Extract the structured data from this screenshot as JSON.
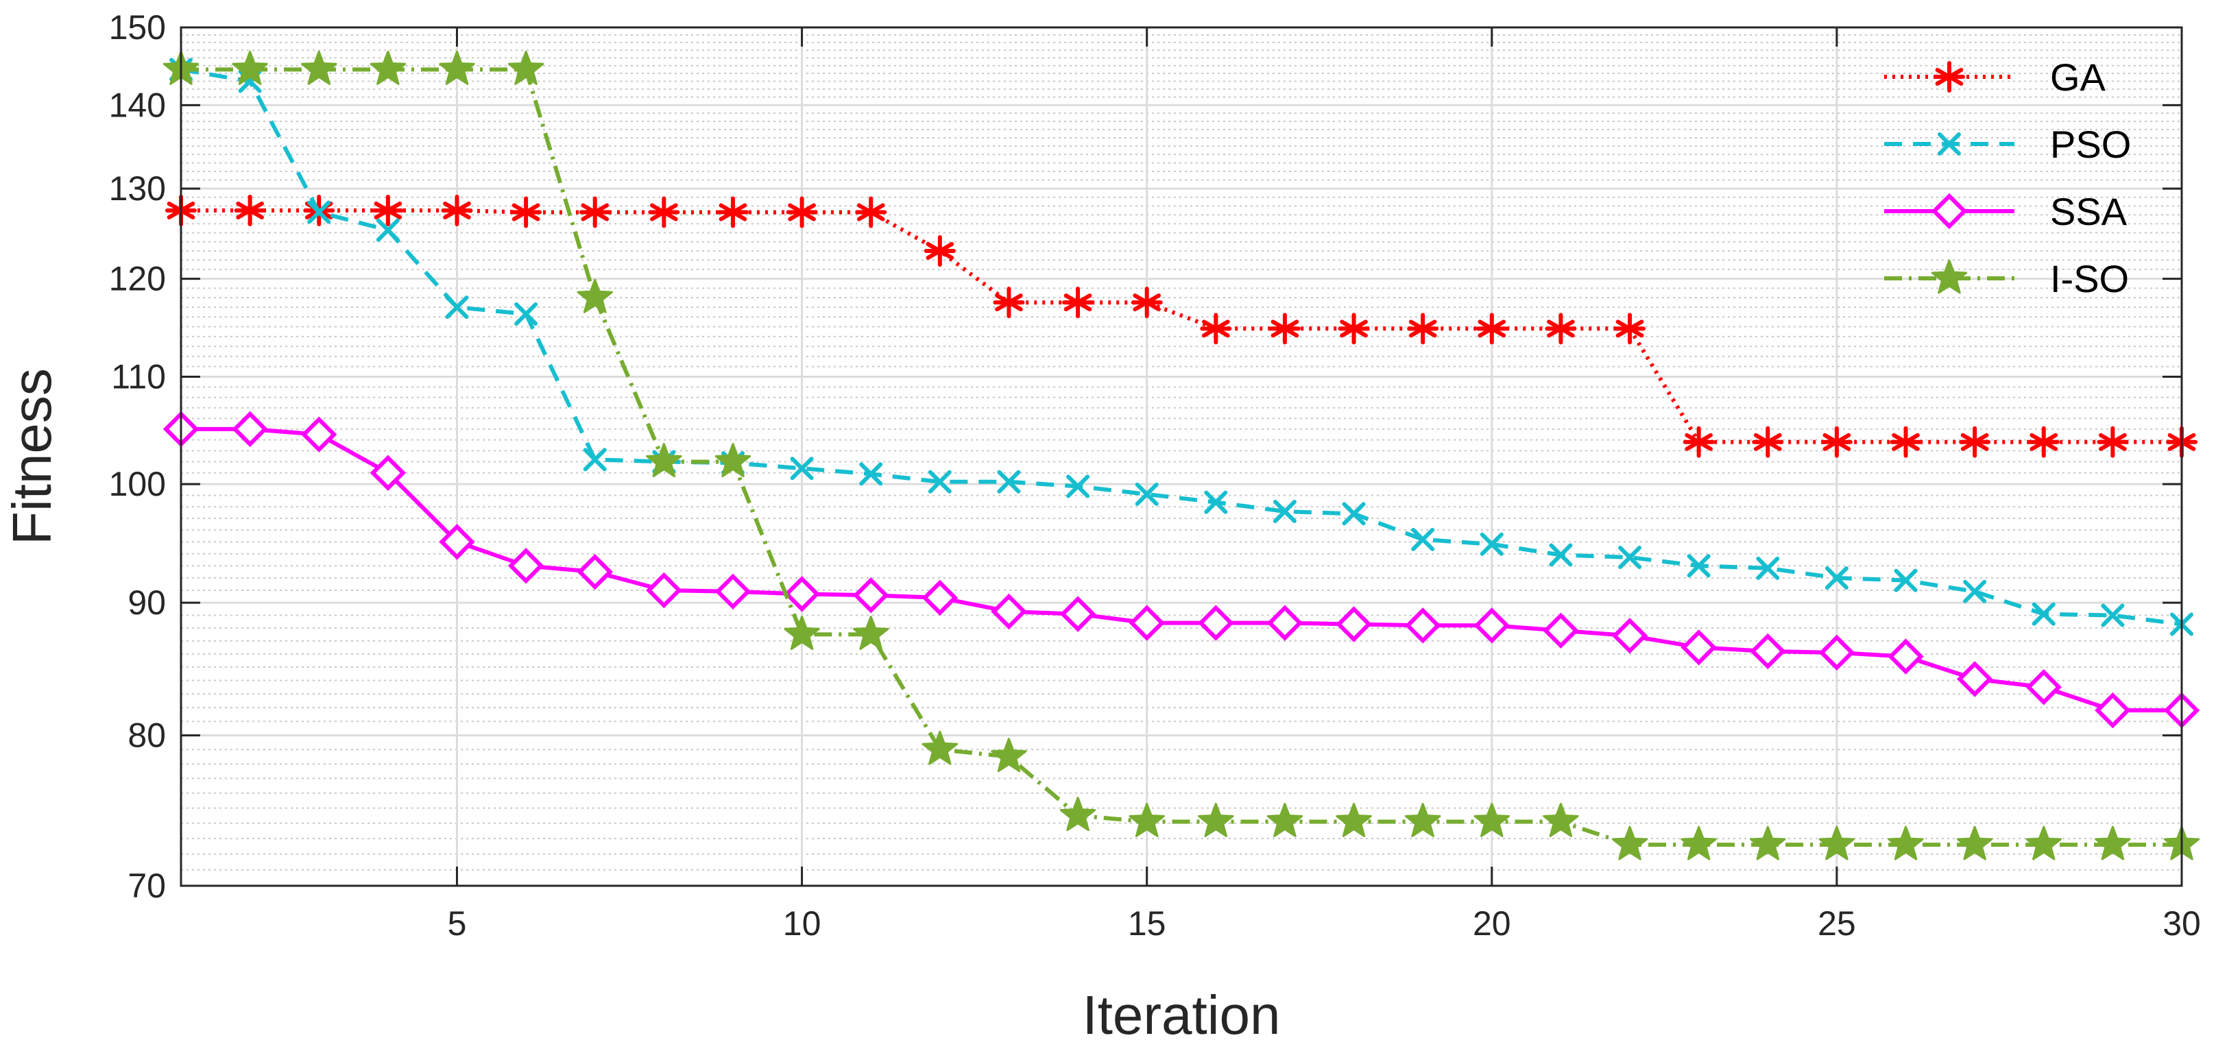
{
  "chart_data": {
    "type": "line",
    "title": "",
    "xlabel": "Iteration",
    "ylabel": "Fitness",
    "xlim": [
      1,
      30
    ],
    "ylim": [
      70,
      150
    ],
    "yscale": "log",
    "xticks": [
      5,
      10,
      15,
      20,
      25,
      30
    ],
    "yticks": [
      70,
      80,
      90,
      100,
      110,
      120,
      130,
      140,
      150
    ],
    "grid": true,
    "minor_grid": true,
    "legend_position": "top-right",
    "x": [
      1,
      2,
      3,
      4,
      5,
      6,
      7,
      8,
      9,
      10,
      11,
      12,
      13,
      14,
      15,
      16,
      17,
      18,
      19,
      20,
      21,
      22,
      23,
      24,
      25,
      26,
      27,
      28,
      29,
      30
    ],
    "series": [
      {
        "name": "GA",
        "color": "#ff0000",
        "line_style": "dotted",
        "marker": "asterisk",
        "values": [
          127.5,
          127.5,
          127.5,
          127.5,
          127.5,
          127.3,
          127.3,
          127.3,
          127.3,
          127.3,
          127.3,
          123.0,
          117.5,
          117.5,
          117.5,
          114.8,
          114.8,
          114.8,
          114.8,
          114.8,
          114.8,
          114.8,
          103.8,
          103.8,
          103.8,
          103.8,
          103.8,
          103.8,
          103.8,
          103.8
        ]
      },
      {
        "name": "PSO",
        "color": "#17becf",
        "line_style": "dashed",
        "marker": "x",
        "values": [
          144.5,
          143.0,
          127.3,
          125.3,
          117.0,
          116.3,
          102.2,
          102.0,
          101.9,
          101.4,
          100.9,
          100.2,
          100.2,
          99.8,
          99.1,
          98.4,
          97.6,
          97.4,
          95.2,
          94.8,
          93.9,
          93.7,
          93.0,
          92.8,
          92.0,
          91.8,
          90.9,
          89.1,
          89.0,
          88.3
        ]
      },
      {
        "name": "SSA",
        "color": "#ff00ff",
        "line_style": "solid",
        "marker": "diamond",
        "values": [
          105.0,
          105.0,
          104.5,
          101.0,
          95.0,
          93.0,
          92.5,
          91.0,
          90.9,
          90.7,
          90.6,
          90.4,
          89.3,
          89.1,
          88.4,
          88.4,
          88.4,
          88.3,
          88.2,
          88.2,
          87.8,
          87.4,
          86.5,
          86.2,
          86.1,
          85.8,
          84.1,
          83.5,
          81.8,
          81.8
        ]
      },
      {
        "name": "I-SO",
        "color": "#77ac30",
        "line_style": "dashdot",
        "marker": "pentagram",
        "values": [
          144.5,
          144.5,
          144.5,
          144.5,
          144.5,
          144.5,
          118.0,
          102.0,
          102.0,
          87.5,
          87.5,
          79.0,
          78.5,
          74.5,
          74.1,
          74.1,
          74.1,
          74.1,
          74.1,
          74.1,
          74.1,
          72.6,
          72.6,
          72.6,
          72.6,
          72.6,
          72.6,
          72.6,
          72.6,
          72.6
        ]
      }
    ]
  }
}
